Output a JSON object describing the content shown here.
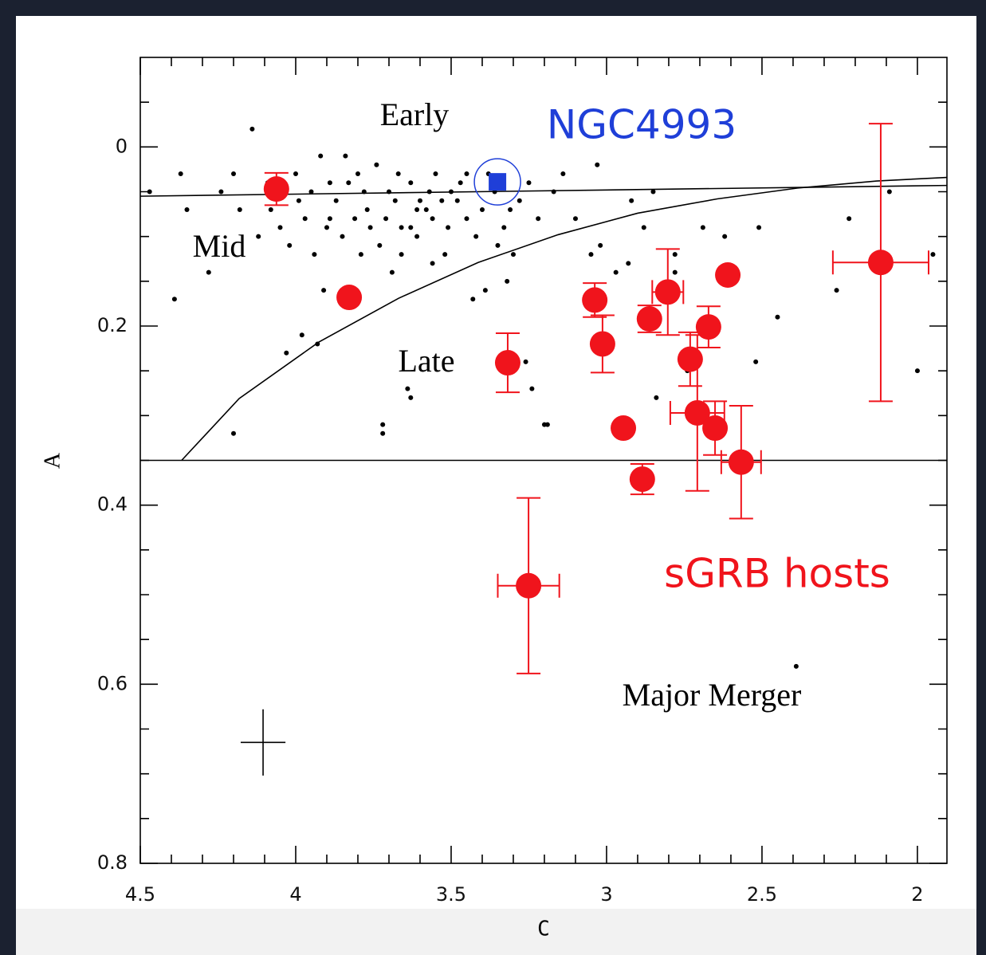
{
  "chart_data": {
    "type": "scatter",
    "xlabel": "C",
    "ylabel": "A",
    "xlim": [
      4.5,
      1.905
    ],
    "ylim": [
      0.8,
      -0.1
    ],
    "xticks": [
      4.5,
      4,
      3.5,
      3,
      2.5,
      2
    ],
    "yticks": [
      0,
      0.2,
      0.4,
      0.6,
      0.8
    ],
    "xminorticks": [
      4.4,
      4.3,
      4.2,
      4.1,
      3.9,
      3.8,
      3.7,
      3.6,
      3.4,
      3.3,
      3.2,
      3.1,
      2.9,
      2.8,
      2.7,
      2.6,
      2.4,
      2.3,
      2.2,
      2.1
    ],
    "yminorticks": [
      -0.05,
      0.05,
      0.1,
      0.15,
      0.25,
      0.3,
      0.35,
      0.45,
      0.5,
      0.55,
      0.65,
      0.7,
      0.75
    ],
    "annotations": [
      "Early",
      "Mid",
      "Late",
      "Major Merger"
    ],
    "series": [
      {
        "color": "#000000",
        "x": [
          4.14,
          4.47,
          4.37,
          4.35,
          4.28,
          4.39,
          4.2,
          4.03,
          3.98,
          3.93,
          3.91,
          3.86,
          3.72,
          3.72,
          3.64,
          3.63,
          3.24,
          3.19,
          3.26,
          3.2,
          3.03,
          3.02,
          2.92,
          2.88,
          2.85,
          2.78,
          2.78,
          2.69,
          2.62,
          2.51,
          2.45,
          2.52,
          2.39,
          2.22,
          2.26,
          2.09,
          2.0,
          1.95,
          2.84,
          2.74,
          3.05,
          2.97,
          2.93,
          3.1,
          3.14,
          3.17,
          3.3,
          3.32,
          3.43,
          3.39,
          3.52,
          3.56,
          3.61,
          3.66,
          3.69,
          3.79,
          3.85,
          3.89,
          3.95,
          4.0,
          3.92,
          3.84,
          3.74,
          3.63,
          3.55,
          3.45,
          3.36,
          3.28,
          3.22,
          3.25,
          3.4,
          3.48,
          3.58,
          3.68,
          3.78,
          3.87,
          3.97,
          4.08,
          4.18,
          4.24,
          4.12,
          4.02,
          3.94,
          3.81,
          3.71,
          3.61,
          3.51,
          3.42,
          3.33,
          3.47,
          3.57,
          3.67,
          3.77,
          3.89,
          3.99,
          4.09,
          4.2,
          3.53,
          3.63,
          3.73,
          3.83,
          3.38,
          3.45,
          3.31,
          3.6,
          3.7,
          3.8,
          3.9,
          4.05,
          3.35,
          3.5,
          3.66,
          3.56,
          3.76
        ],
        "y": [
          -0.02,
          0.05,
          0.03,
          0.07,
          0.14,
          0.17,
          0.32,
          0.23,
          0.21,
          0.22,
          0.16,
          0.17,
          0.31,
          0.32,
          0.27,
          0.28,
          0.27,
          0.31,
          0.24,
          0.31,
          0.02,
          0.11,
          0.06,
          0.09,
          0.05,
          0.12,
          0.14,
          0.09,
          0.1,
          0.09,
          0.19,
          0.24,
          0.58,
          0.08,
          0.16,
          0.05,
          0.25,
          0.12,
          0.28,
          0.25,
          0.12,
          0.14,
          0.13,
          0.08,
          0.03,
          0.05,
          0.12,
          0.15,
          0.17,
          0.16,
          0.12,
          0.13,
          0.1,
          0.09,
          0.14,
          0.12,
          0.1,
          0.08,
          0.05,
          0.03,
          0.01,
          0.01,
          0.02,
          0.04,
          0.03,
          0.03,
          0.05,
          0.06,
          0.08,
          0.04,
          0.07,
          0.06,
          0.07,
          0.06,
          0.05,
          0.06,
          0.08,
          0.07,
          0.07,
          0.05,
          0.1,
          0.11,
          0.12,
          0.08,
          0.08,
          0.07,
          0.09,
          0.1,
          0.09,
          0.04,
          0.05,
          0.03,
          0.07,
          0.04,
          0.06,
          0.04,
          0.03,
          0.06,
          0.09,
          0.11,
          0.04,
          0.03,
          0.08,
          0.07,
          0.06,
          0.05,
          0.03,
          0.09,
          0.09,
          0.11,
          0.05,
          0.12,
          0.08,
          0.09
        ]
      },
      {
        "name": "sGRB hosts",
        "color": "#f0141c",
        "x": [
          4.062,
          3.828,
          3.318,
          3.038,
          3.013,
          2.862,
          2.803,
          2.61,
          2.672,
          2.731,
          2.708,
          2.651,
          2.946,
          2.567,
          2.885,
          2.118,
          3.251
        ],
        "y": [
          0.047,
          0.168,
          0.241,
          0.171,
          0.22,
          0.192,
          0.162,
          0.143,
          0.201,
          0.237,
          0.297,
          0.314,
          0.314,
          0.352,
          0.371,
          0.129,
          0.49
        ],
        "xerr": [
          null,
          null,
          null,
          null,
          null,
          null,
          0.05,
          null,
          null,
          null,
          0.087,
          null,
          null,
          0.064,
          null,
          0.154,
          0.099
        ],
        "yerr": [
          0.018,
          null,
          0.033,
          0.019,
          0.032,
          0.015,
          0.048,
          null,
          0.023,
          0.03,
          0.087,
          0.03,
          null,
          0.063,
          0.017,
          0.155,
          0.098
        ]
      },
      {
        "name": "NGC4993",
        "color": "#1f3fd8",
        "x": [
          3.351
        ],
        "y": [
          0.039
        ]
      }
    ],
    "boundaries": [
      {
        "x": [
          4.5,
          1.905
        ],
        "y": [
          0.055,
          0.043
        ]
      },
      {
        "x": [
          4.5,
          1.905
        ],
        "y": [
          0.35,
          0.35
        ]
      },
      {
        "x": [
          4.367,
          4.182,
          3.926,
          3.669,
          3.413,
          3.156,
          2.9,
          2.644,
          2.387,
          2.131,
          1.905
        ],
        "y": [
          0.35,
          0.281,
          0.218,
          0.169,
          0.129,
          0.098,
          0.074,
          0.058,
          0.046,
          0.038,
          0.034
        ]
      }
    ],
    "error_sample": {
      "x": 4.105,
      "y": 0.665,
      "xerr": 0.072,
      "yerr": 0.037
    }
  }
}
